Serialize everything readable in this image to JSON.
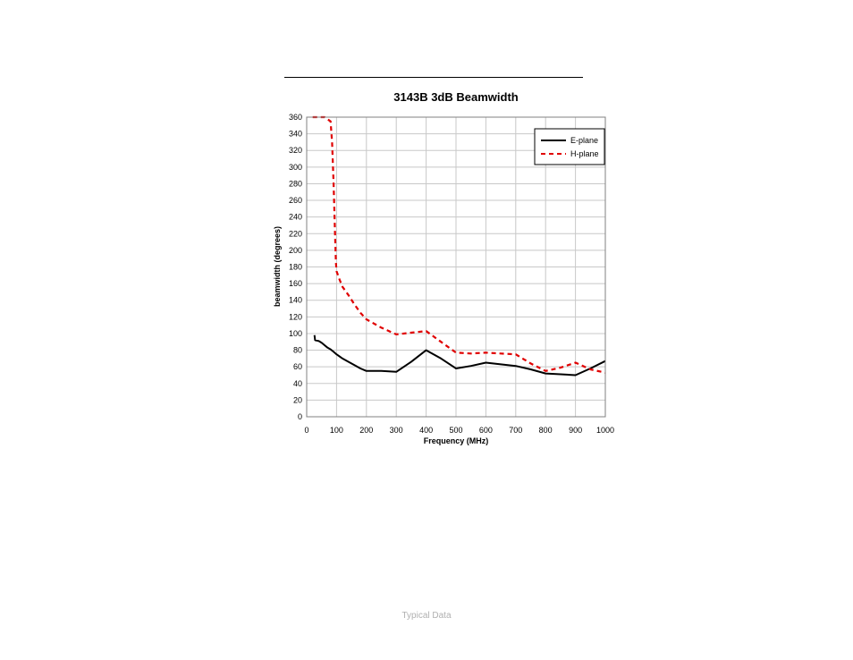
{
  "chart_data": {
    "type": "line",
    "title": "3143B 3dB Beamwidth",
    "xlabel": "Frequency (MHz)",
    "ylabel": "beamwidth (degrees)",
    "xlim": [
      0,
      1000
    ],
    "ylim": [
      0,
      360
    ],
    "x_ticks": [
      0,
      100,
      200,
      300,
      400,
      500,
      600,
      700,
      800,
      900,
      1000
    ],
    "y_ticks": [
      0,
      20,
      40,
      60,
      80,
      100,
      120,
      140,
      160,
      180,
      200,
      220,
      240,
      260,
      280,
      300,
      320,
      340,
      360
    ],
    "grid": true,
    "legend_position": "top-right",
    "series": [
      {
        "name": "E-plane",
        "color": "#000000",
        "style": "solid",
        "x": [
          26,
          28,
          40,
          50,
          60,
          70,
          80,
          90,
          100,
          120,
          140,
          160,
          180,
          200,
          250,
          300,
          350,
          400,
          450,
          500,
          550,
          600,
          650,
          700,
          750,
          800,
          850,
          900,
          950,
          1000
        ],
        "y": [
          98,
          92,
          91,
          89,
          86,
          83,
          81,
          78,
          75,
          70,
          66,
          62,
          58,
          55,
          55,
          54,
          66,
          80,
          70,
          58,
          61,
          65,
          63,
          61,
          57,
          52,
          51,
          50,
          58,
          67
        ]
      },
      {
        "name": "H-plane",
        "color": "#e00000",
        "style": "dashed",
        "x": [
          20,
          60,
          80,
          85,
          90,
          95,
          98,
          100,
          110,
          120,
          140,
          160,
          180,
          200,
          250,
          300,
          350,
          400,
          450,
          500,
          550,
          600,
          650,
          700,
          750,
          800,
          850,
          900,
          950,
          1000
        ],
        "y": [
          360,
          360,
          355,
          330,
          280,
          220,
          185,
          175,
          165,
          156,
          146,
          135,
          125,
          117,
          107,
          99,
          101,
          103,
          90,
          77,
          76,
          77,
          76,
          75,
          64,
          55,
          59,
          65,
          57,
          53
        ]
      }
    ]
  },
  "footer": {
    "caption": "Typical Data"
  }
}
